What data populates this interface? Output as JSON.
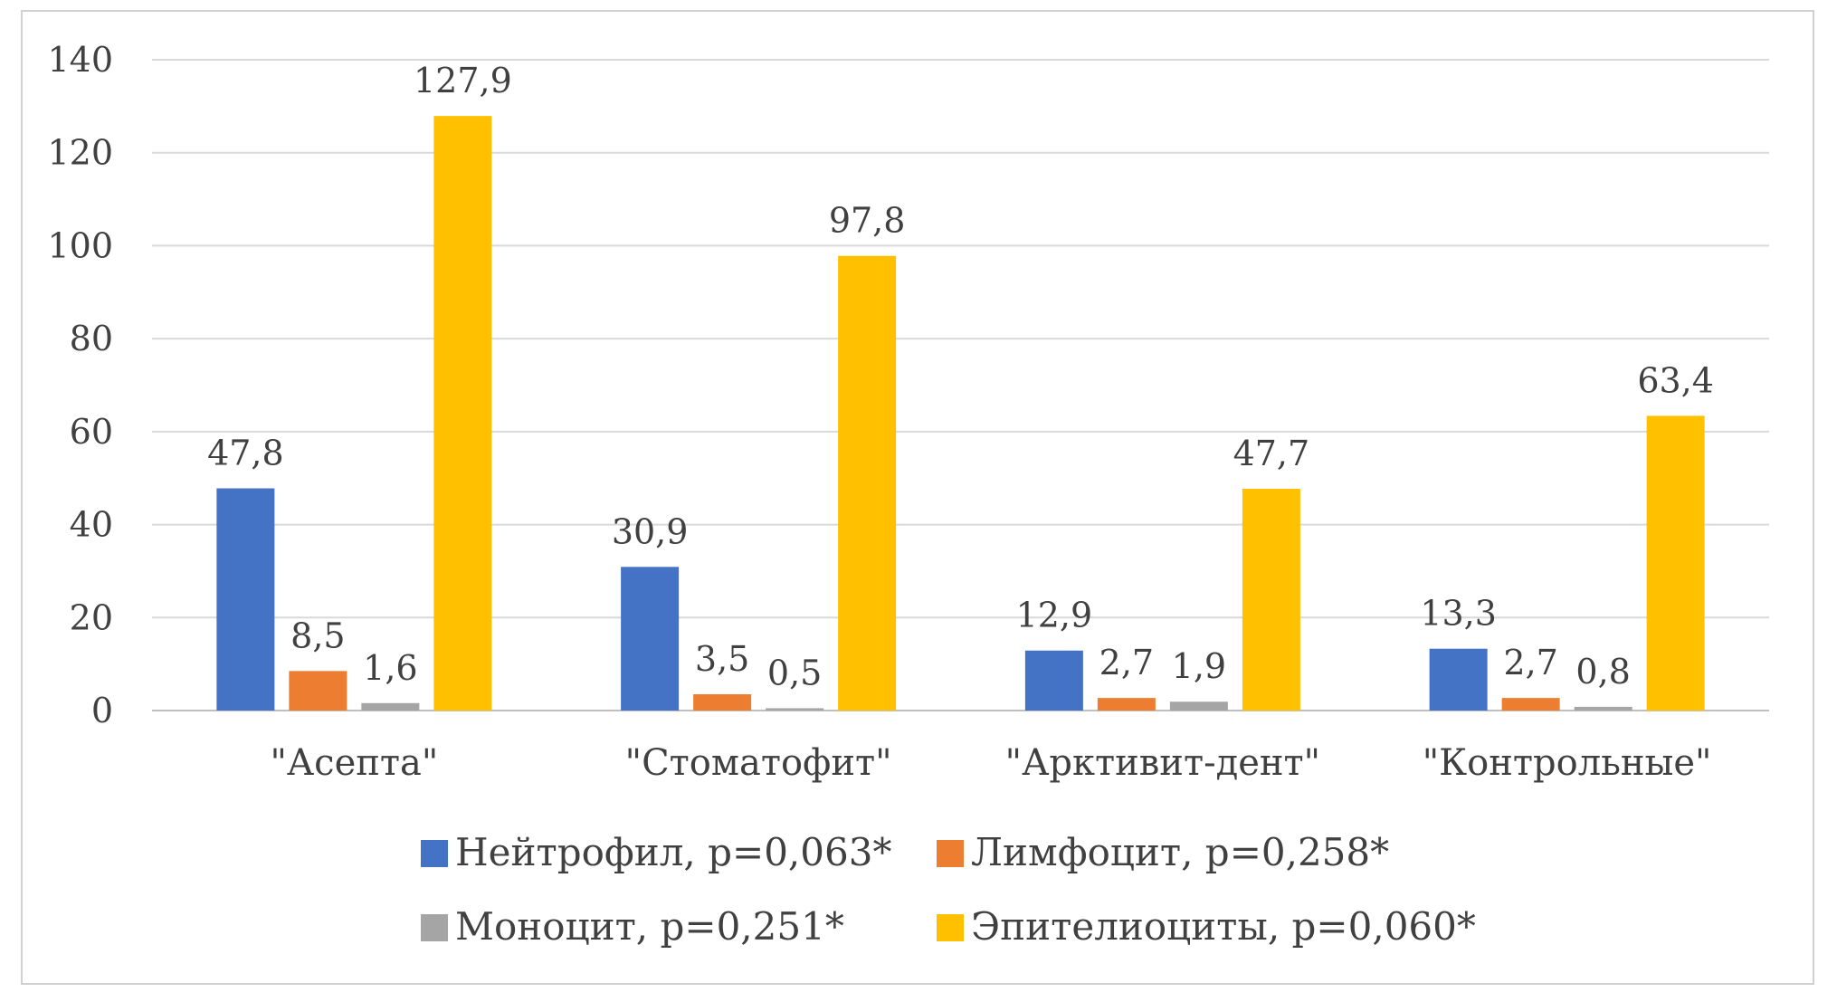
{
  "chart_data": {
    "type": "bar",
    "categories": [
      "\"Асепта\"",
      "\"Стоматофит\"",
      "\"Арктивит-дент\"",
      "\"Контрольные\""
    ],
    "series": [
      {
        "name": "Нейтрофил, р=0,063*",
        "color": "#4472C4",
        "values": [
          47.8,
          30.9,
          12.9,
          13.3
        ],
        "labels": [
          "47,8",
          "30,9",
          "12,9",
          "13,3"
        ]
      },
      {
        "name": "Лимфоцит, р=0,258*",
        "color": "#ED7D31",
        "values": [
          8.5,
          3.5,
          2.7,
          2.7
        ],
        "labels": [
          "8,5",
          "3,5",
          "2,7",
          "2,7"
        ]
      },
      {
        "name": "Моноцит, р=0,251*",
        "color": "#A5A5A5",
        "values": [
          1.6,
          0.5,
          1.9,
          0.8
        ],
        "labels": [
          "1,6",
          "0,5",
          "1,9",
          "0,8"
        ]
      },
      {
        "name": "Эпителиоциты, р=0,060*",
        "color": "#FFC000",
        "values": [
          127.9,
          97.8,
          47.7,
          63.4
        ],
        "labels": [
          "127,9",
          "97,8",
          "47,7",
          "63,4"
        ]
      }
    ],
    "y_ticks": [
      "0",
      "20",
      "40",
      "60",
      "80",
      "100",
      "120",
      "140"
    ],
    "ylim": [
      0,
      140
    ],
    "grid": true,
    "legend_position": "bottom"
  }
}
